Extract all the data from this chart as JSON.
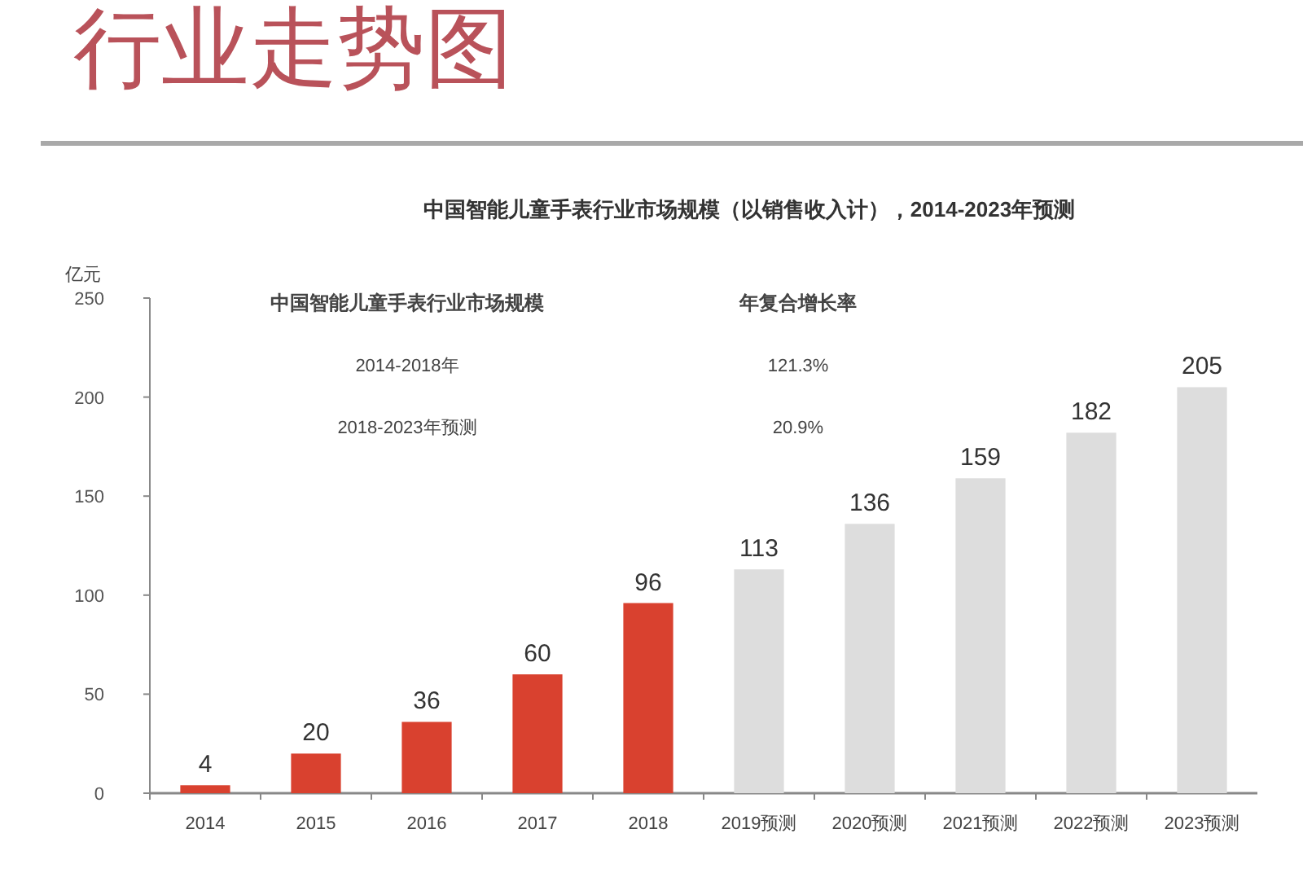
{
  "chart_data": {
    "type": "bar",
    "title": "行业走势图",
    "subtitle": "中国智能儿童手表行业市场规模（以销售收入计），2014-2023年预测",
    "ylabel": "亿元",
    "categories": [
      "2014",
      "2015",
      "2016",
      "2017",
      "2018",
      "2019预测",
      "2020预测",
      "2021预测",
      "2022预测",
      "2023预测"
    ],
    "values": [
      4,
      20,
      36,
      60,
      96,
      113,
      136,
      159,
      182,
      205
    ],
    "colors": [
      "#d9412f",
      "#d9412f",
      "#d9412f",
      "#d9412f",
      "#d9412f",
      "#dddddd",
      "#dddddd",
      "#dddddd",
      "#dddddd",
      "#dddddd"
    ],
    "ylim": [
      0,
      250
    ],
    "yticks": [
      0,
      50,
      100,
      150,
      200,
      250
    ],
    "data_labels": true,
    "annotations": [
      "中国智能儿童手表行业市场规模",
      "年复合增长率",
      "2014-2018年",
      "121.3%",
      "2018-2023年预测",
      "20.9%"
    ]
  }
}
